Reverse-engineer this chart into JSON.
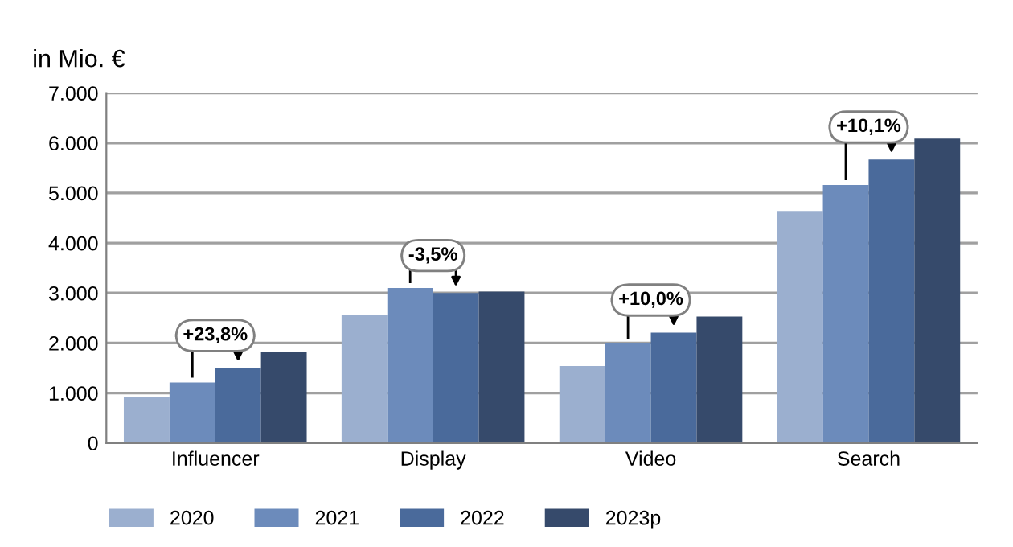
{
  "chart_data": {
    "type": "bar",
    "ylabel": "in Mio. €",
    "categories": [
      "Influencer",
      "Display",
      "Video",
      "Search"
    ],
    "series": [
      {
        "name": "2020",
        "color": "#9bafcf",
        "values": [
          920,
          2560,
          1540,
          4640
        ]
      },
      {
        "name": "2021",
        "color": "#6c8bbb",
        "values": [
          1210,
          3100,
          1990,
          5160
        ]
      },
      {
        "name": "2022",
        "color": "#4a6a9b",
        "values": [
          1500,
          3000,
          2210,
          5670
        ]
      },
      {
        "name": "2023p",
        "color": "#364a6b",
        "values": [
          1820,
          3030,
          2530,
          6090
        ]
      }
    ],
    "ylim": [
      0,
      7000
    ],
    "yticks": [
      0,
      {
        "value": 1000,
        "label": "1.000"
      },
      {
        "value": 2000,
        "label": "2.000"
      },
      {
        "value": 3000,
        "label": "3.000"
      },
      {
        "value": 4000,
        "label": "4.000"
      },
      {
        "value": 5000,
        "label": "5.000"
      },
      {
        "value": 6000,
        "label": "6.000"
      },
      {
        "value": 7000,
        "label": "7.000"
      }
    ],
    "grid": "y",
    "legend": "bottom left",
    "annotations": [
      "+23,8%",
      "-3,5%",
      "+10,0%",
      "+10,1%"
    ]
  }
}
